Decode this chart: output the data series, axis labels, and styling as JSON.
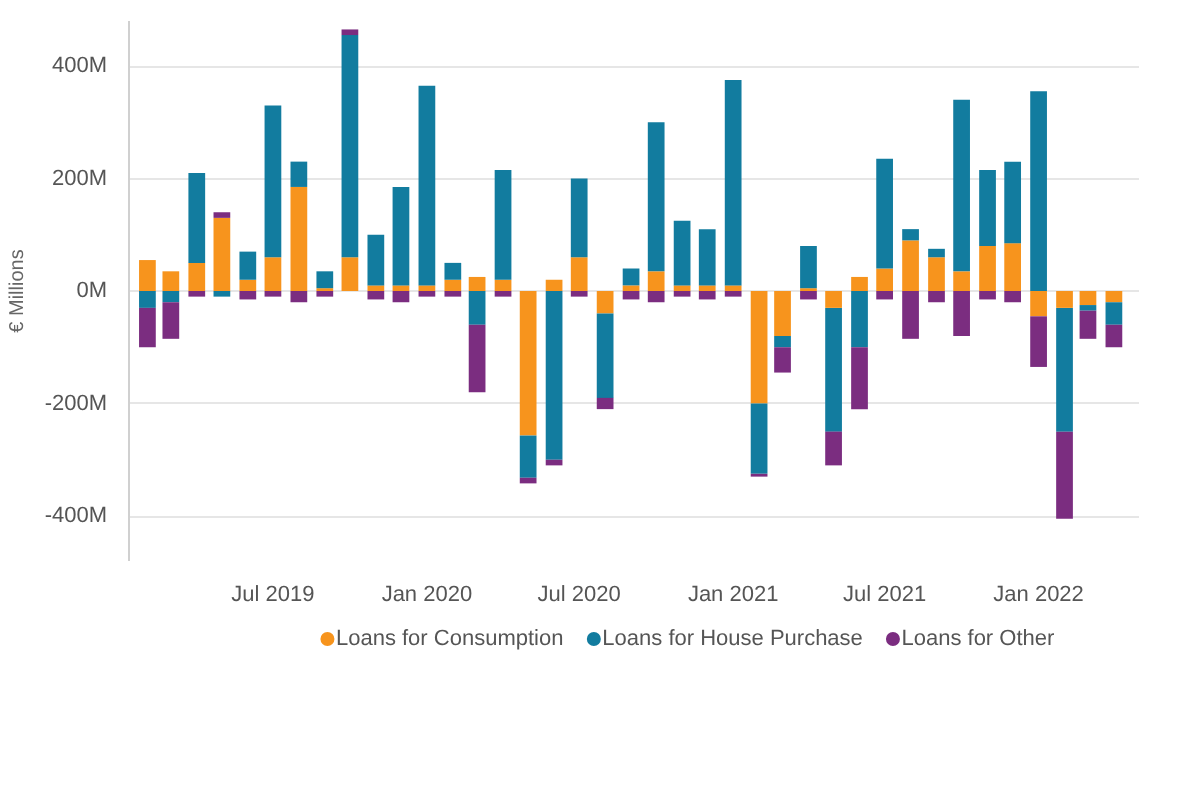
{
  "chart_data": {
    "type": "bar",
    "stacked": true,
    "ylabel": "€ Millions",
    "x": [
      "2019-02",
      "2019-03",
      "2019-04",
      "2019-05",
      "2019-06",
      "2019-07",
      "2019-08",
      "2019-09",
      "2019-10",
      "2019-11",
      "2019-12",
      "2020-01",
      "2020-02",
      "2020-03",
      "2020-04",
      "2020-05",
      "2020-06",
      "2020-07",
      "2020-08",
      "2020-09",
      "2020-10",
      "2020-11",
      "2020-12",
      "2021-01",
      "2021-02",
      "2021-03",
      "2021-04",
      "2021-05",
      "2021-06",
      "2021-07",
      "2021-08",
      "2021-09",
      "2021-10",
      "2021-11",
      "2021-12",
      "2022-01",
      "2022-02",
      "2022-03",
      "2022-04"
    ],
    "series": [
      {
        "name": "Loans for Consumption",
        "color": "#f7941d",
        "values": [
          55,
          35,
          50,
          130,
          20,
          60,
          185,
          5,
          60,
          10,
          10,
          10,
          20,
          25,
          20,
          -257,
          20,
          60,
          -40,
          10,
          35,
          10,
          10,
          10,
          -200,
          -80,
          5,
          -30,
          25,
          40,
          90,
          60,
          35,
          80,
          85,
          -45,
          -30,
          -25,
          -20
        ]
      },
      {
        "name": "Loans for House Purchase",
        "color": "#127c9f",
        "values": [
          -30,
          -20,
          160,
          -10,
          50,
          270,
          45,
          30,
          395,
          90,
          175,
          355,
          30,
          -60,
          195,
          -75,
          -300,
          140,
          -150,
          30,
          265,
          115,
          100,
          365,
          -125,
          -20,
          75,
          -220,
          -100,
          195,
          20,
          15,
          305,
          135,
          145,
          355,
          -220,
          -10,
          -40
        ]
      },
      {
        "name": "Loans for Other",
        "color": "#7b2d80",
        "values": [
          -70,
          -65,
          -10,
          10,
          -15,
          -10,
          -20,
          -10,
          10,
          -15,
          -20,
          -10,
          -10,
          -120,
          -10,
          -10,
          -10,
          -10,
          -20,
          -15,
          -20,
          -10,
          -15,
          -10,
          -5,
          -45,
          -15,
          -60,
          -110,
          -15,
          -85,
          -20,
          -80,
          -15,
          -20,
          -90,
          -155,
          -50,
          -40
        ]
      }
    ],
    "ylim": [
      -480,
      480
    ],
    "yticks": [
      {
        "value": -400,
        "label": "-400M"
      },
      {
        "value": -200,
        "label": "-200M"
      },
      {
        "value": 0,
        "label": "0M"
      },
      {
        "value": 200,
        "label": "200M"
      },
      {
        "value": 400,
        "label": "400M"
      }
    ],
    "xlim": [
      "2019-01-10",
      "2022-05-01"
    ],
    "xticks": [
      {
        "value": "2019-07",
        "label": "Jul 2019"
      },
      {
        "value": "2020-01",
        "label": "Jan 2020"
      },
      {
        "value": "2020-07",
        "label": "Jul 2020"
      },
      {
        "value": "2021-01",
        "label": "Jan 2021"
      },
      {
        "value": "2021-07",
        "label": "Jul 2021"
      },
      {
        "value": "2022-01",
        "label": "Jan 2022"
      }
    ],
    "grid": "y",
    "legend": "bottom"
  }
}
